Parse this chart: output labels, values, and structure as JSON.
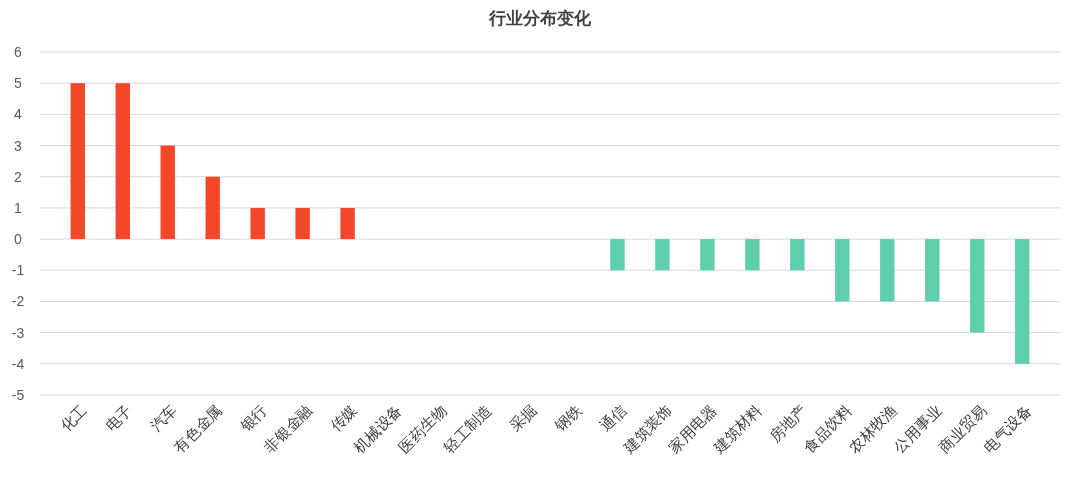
{
  "chart_data": {
    "type": "bar",
    "title": "行业分布变化",
    "categories": [
      "化工",
      "电子",
      "汽车",
      "有色金属",
      "银行",
      "非银金融",
      "传媒",
      "机械设备",
      "医药生物",
      "轻工制造",
      "采掘",
      "钢铁",
      "通信",
      "建筑装饰",
      "家用电器",
      "建筑材料",
      "房地产",
      "食品饮料",
      "农林牧渔",
      "公用事业",
      "商业贸易",
      "电气设备"
    ],
    "values": [
      5,
      5,
      3,
      2,
      1,
      1,
      1,
      0,
      0,
      0,
      0,
      0,
      -1,
      -1,
      -1,
      -1,
      -1,
      -2,
      -2,
      -2,
      -3,
      -4
    ],
    "colors": [
      "#f4472a",
      "#f4472a",
      "#f4472a",
      "#f4472a",
      "#f4472a",
      "#f4472a",
      "#f4472a",
      "#f4472a",
      "#f4472a",
      "#f4472a",
      "#f4472a",
      "#f4472a",
      "#5ecfae",
      "#5ecfae",
      "#5ecfae",
      "#5ecfae",
      "#5ecfae",
      "#5ecfae",
      "#5ecfae",
      "#5ecfae",
      "#5ecfae",
      "#5ecfae"
    ],
    "ylim": [
      -5,
      6
    ],
    "yticks": [
      -5,
      -4,
      -3,
      -2,
      -1,
      0,
      1,
      2,
      3,
      4,
      5,
      6
    ],
    "grid": "y"
  }
}
